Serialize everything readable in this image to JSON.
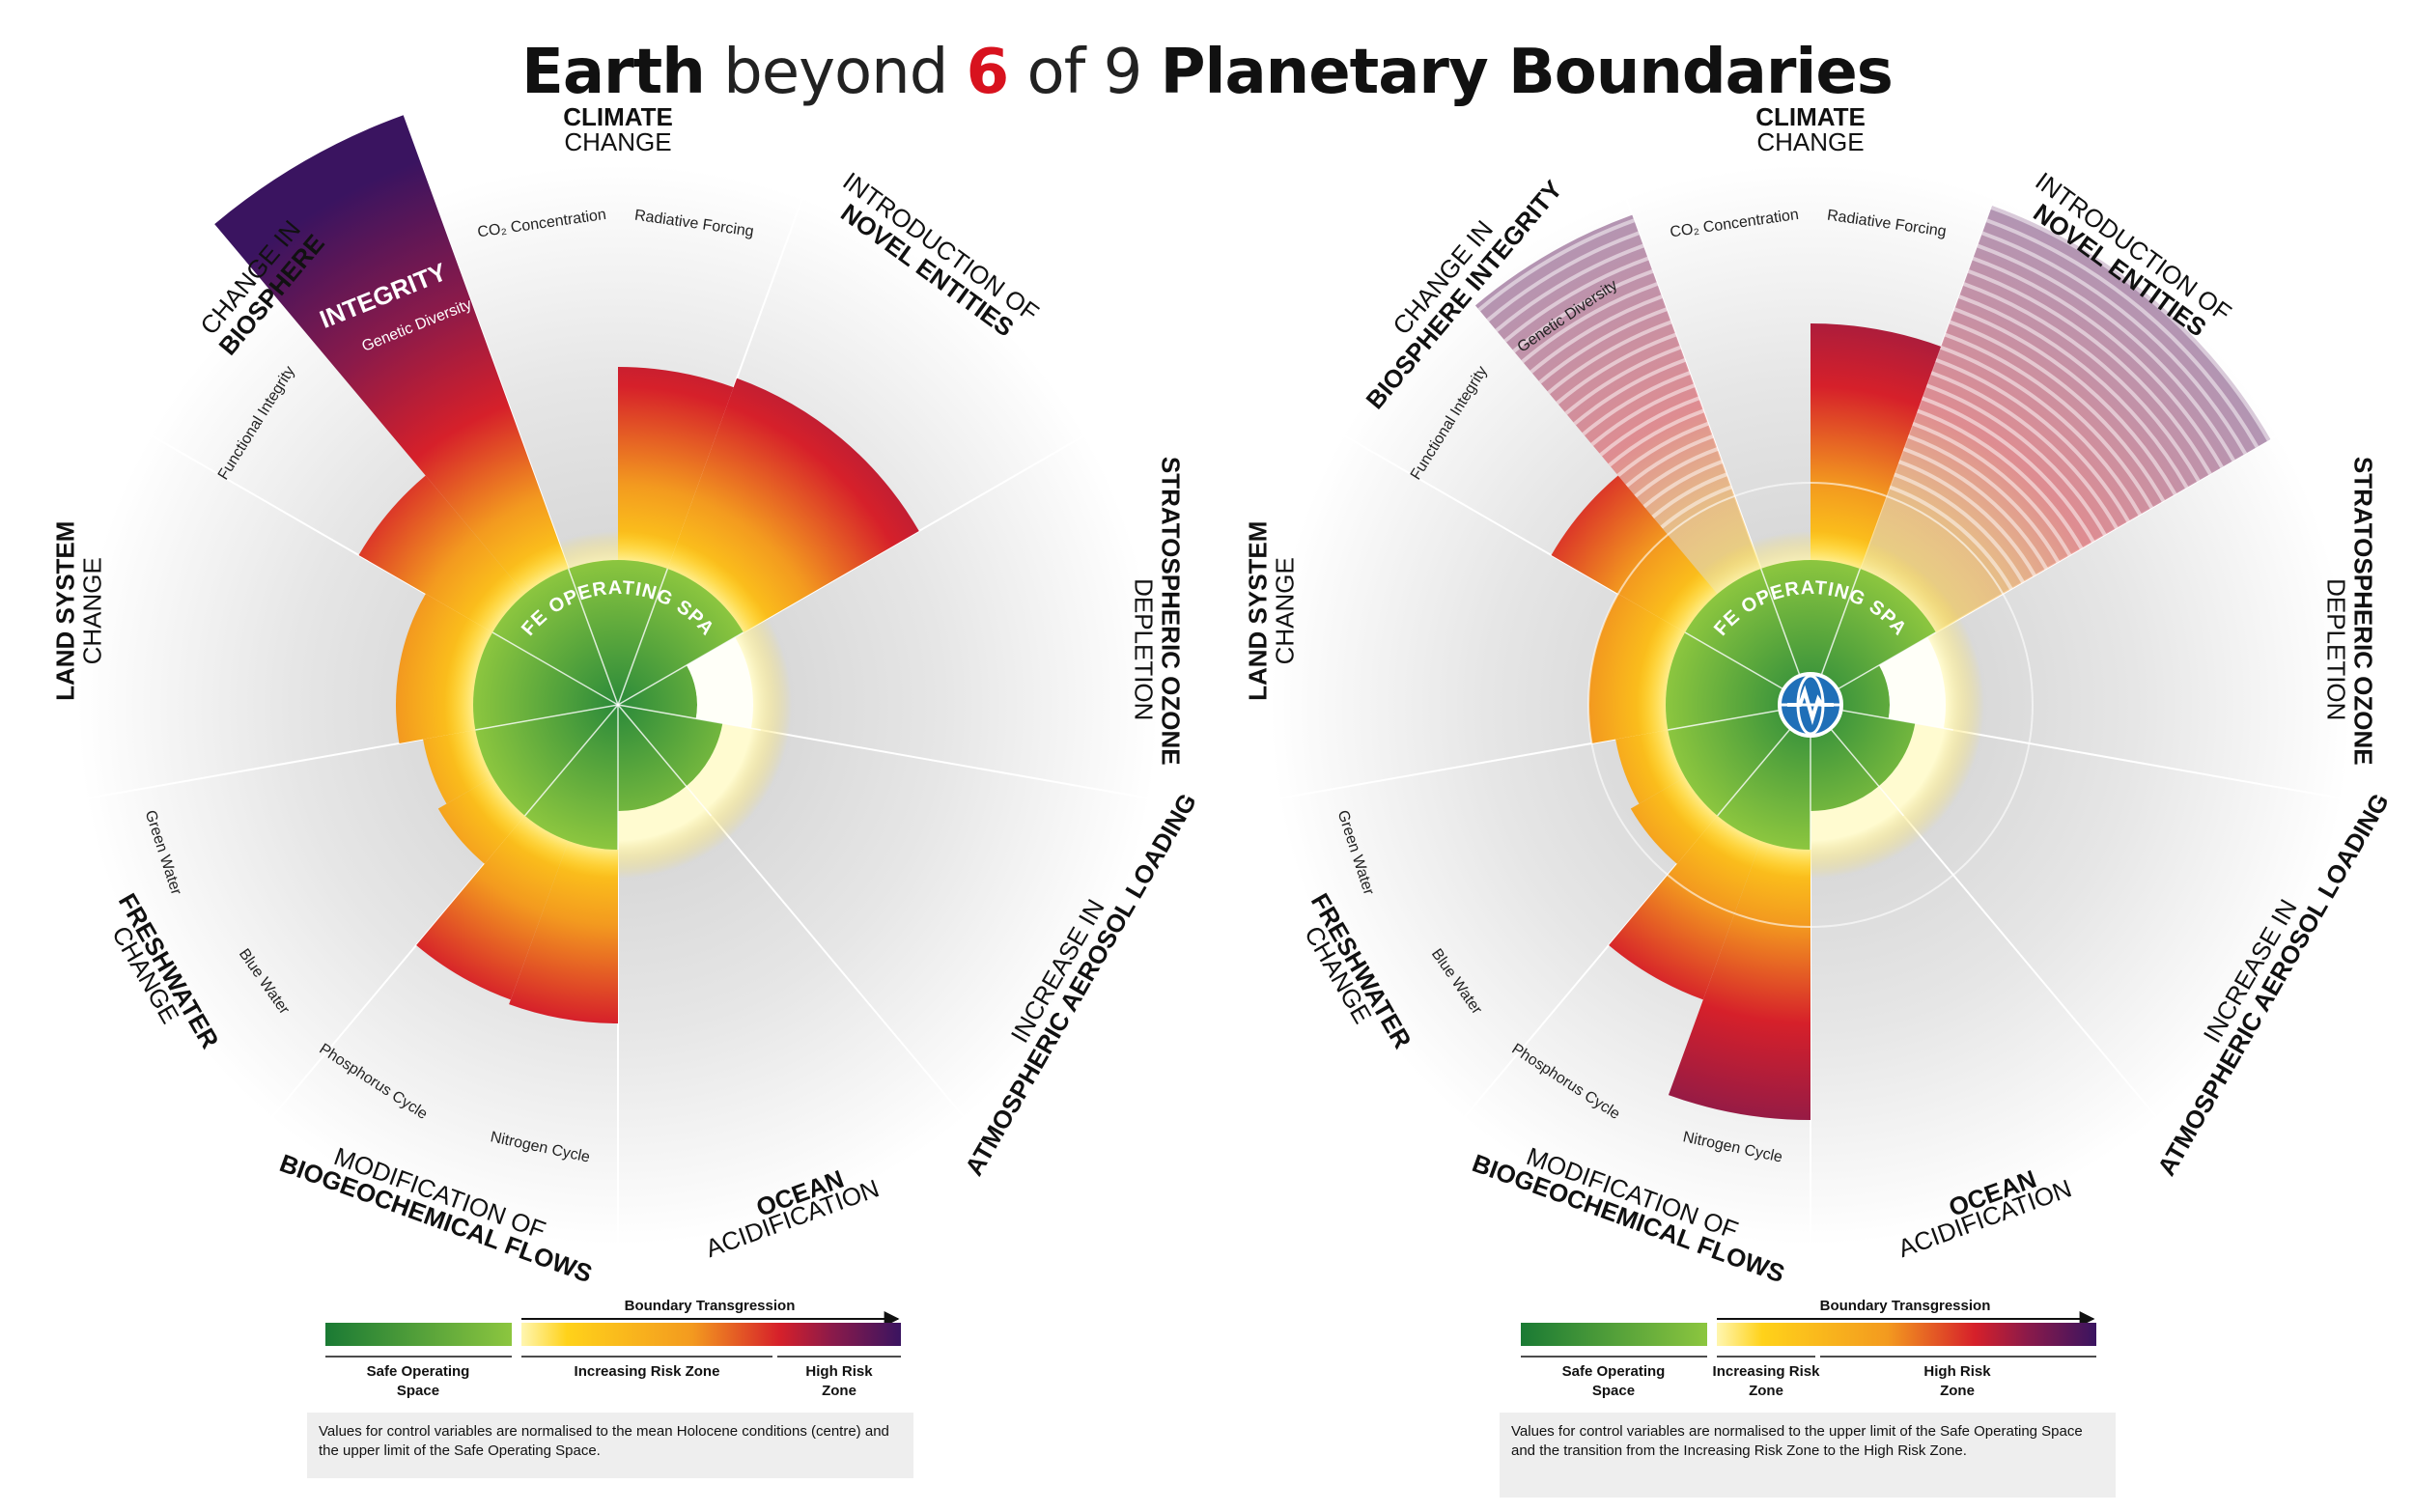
{
  "title": {
    "part1": "Earth",
    "part2": "beyond",
    "part3": "6",
    "part4": "of 9",
    "part5": "Planetary Boundaries"
  },
  "center_label": "SAFE OPERATING SPACE",
  "segments": [
    {
      "id": "climate",
      "bold": "CLIMATE",
      "light": "CHANGE",
      "subs": [
        "CO₂ Concentration",
        "Radiative Forcing"
      ]
    },
    {
      "id": "novel",
      "bold": "NOVEL ENTITIES",
      "light": "INTRODUCTION OF",
      "subs": []
    },
    {
      "id": "ozone",
      "bold": "STRATOSPHERIC OZONE",
      "light": "DEPLETION",
      "subs": []
    },
    {
      "id": "aerosol",
      "bold": "ATMOSPHERIC AEROSOL LOADING",
      "light": "INCREASE IN",
      "subs": []
    },
    {
      "id": "ocean",
      "bold": "OCEAN",
      "light": "ACIDIFICATION",
      "subs": []
    },
    {
      "id": "bgc",
      "bold": "BIOGEOCHEMICAL FLOWS",
      "light": "MODIFICATION OF",
      "subs": [
        "Nitrogen Cycle",
        "Phosphorus Cycle"
      ]
    },
    {
      "id": "fresh",
      "bold": "FRESHWATER",
      "light": "CHANGE",
      "subs": [
        "Blue Water",
        "Green Water"
      ]
    },
    {
      "id": "land",
      "bold": "LAND SYSTEM",
      "light": "CHANGE",
      "subs": []
    },
    {
      "id": "bio",
      "bold": "BIOSPHERE",
      "light": "CHANGE IN",
      "subs": [
        "Functional Integrity",
        "Genetic Diversity"
      ]
    }
  ],
  "left_chart": {
    "integrity_label": "INTEGRITY",
    "genetic_label": "Genetic Diversity"
  },
  "right_chart": {
    "bio_bold": "BIOSPHERE INTEGRITY",
    "bio_light": "CHANGE IN"
  },
  "legend_left": {
    "arrow_label": "Boundary Transgression",
    "captions": [
      "Safe Operating Space",
      "Increasing Risk Zone",
      "High Risk Zone"
    ],
    "note": "Values for control variables are normalised to the mean Holocene conditions (centre) and the upper limit of the Safe Operating Space."
  },
  "legend_right": {
    "arrow_label": "Boundary Transgression",
    "captions": [
      "Safe Operating Space",
      "Increasing Risk Zone",
      "High Risk Zone"
    ],
    "note": "Values for control variables are normalised to the upper limit of the Safe Operating Space and the transition from the Increasing Risk Zone to the High Risk Zone."
  },
  "colors": {
    "green_dark": "#1a7a34",
    "green_light": "#8cc63f",
    "yellow": "#ffde1a",
    "orange": "#f39a1f",
    "red": "#d6202a",
    "purple": "#4a1a6a"
  }
}
